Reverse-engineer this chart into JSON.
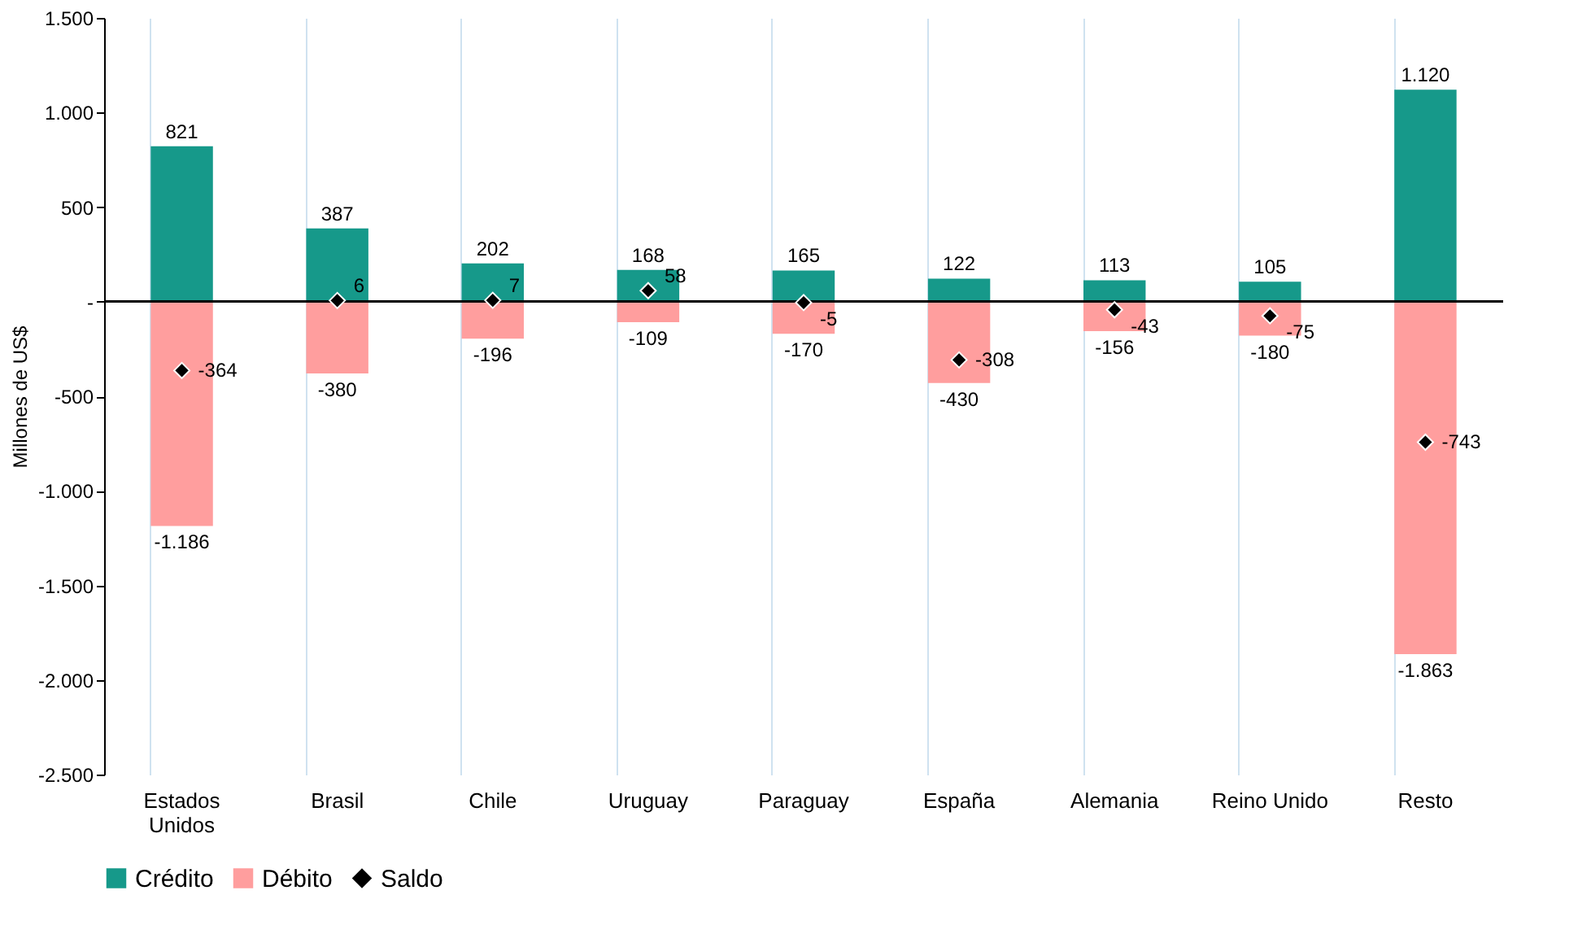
{
  "chart_data": {
    "type": "bar",
    "stacked": true,
    "ylabel": "Millones de US$",
    "categories": [
      "Estados Unidos",
      "Brasil",
      "Chile",
      "Uruguay",
      "Paraguay",
      "España",
      "Alemania",
      "Reino Unido",
      "Resto"
    ],
    "series": [
      {
        "name": "Crédito",
        "color": "#16998a",
        "values": [
          821,
          387,
          202,
          168,
          165,
          122,
          113,
          105,
          1120
        ],
        "value_labels": [
          "821",
          "387",
          "202",
          "168",
          "165",
          "122",
          "113",
          "105",
          "1.120"
        ]
      },
      {
        "name": "Débito",
        "color": "#ff9e9e",
        "values": [
          -1186,
          -380,
          -196,
          -109,
          -170,
          -430,
          -156,
          -180,
          -1863
        ],
        "value_labels": [
          "-1.186",
          "-380",
          "-196",
          "-109",
          "-170",
          "-430",
          "-156",
          "-180",
          "-1.863"
        ]
      },
      {
        "name": "Saldo",
        "type": "scatter",
        "marker": "diamond",
        "color": "#000000",
        "values": [
          -364,
          6,
          7,
          58,
          -5,
          -308,
          -43,
          -75,
          -743
        ],
        "value_labels": [
          "-364",
          "6",
          "7",
          "58",
          "-5",
          "-308",
          "-43",
          "-75",
          "-743"
        ]
      }
    ],
    "ylim": [
      -2500,
      1500
    ],
    "yticks": [
      {
        "value": 1500,
        "label": "1.500"
      },
      {
        "value": 1000,
        "label": "1.000"
      },
      500,
      {
        "value": 0,
        "label": "-"
      },
      -500,
      {
        "value": -1000,
        "label": "-1.000"
      },
      {
        "value": -1500,
        "label": "-1.500"
      },
      {
        "value": -2000,
        "label": "-2.000"
      },
      {
        "value": -2500,
        "label": "-2.500"
      }
    ],
    "ref_lines": [
      {
        "axis": "y",
        "value": 0,
        "color": "#000000"
      }
    ],
    "grid": "x",
    "legend": "bottom"
  }
}
